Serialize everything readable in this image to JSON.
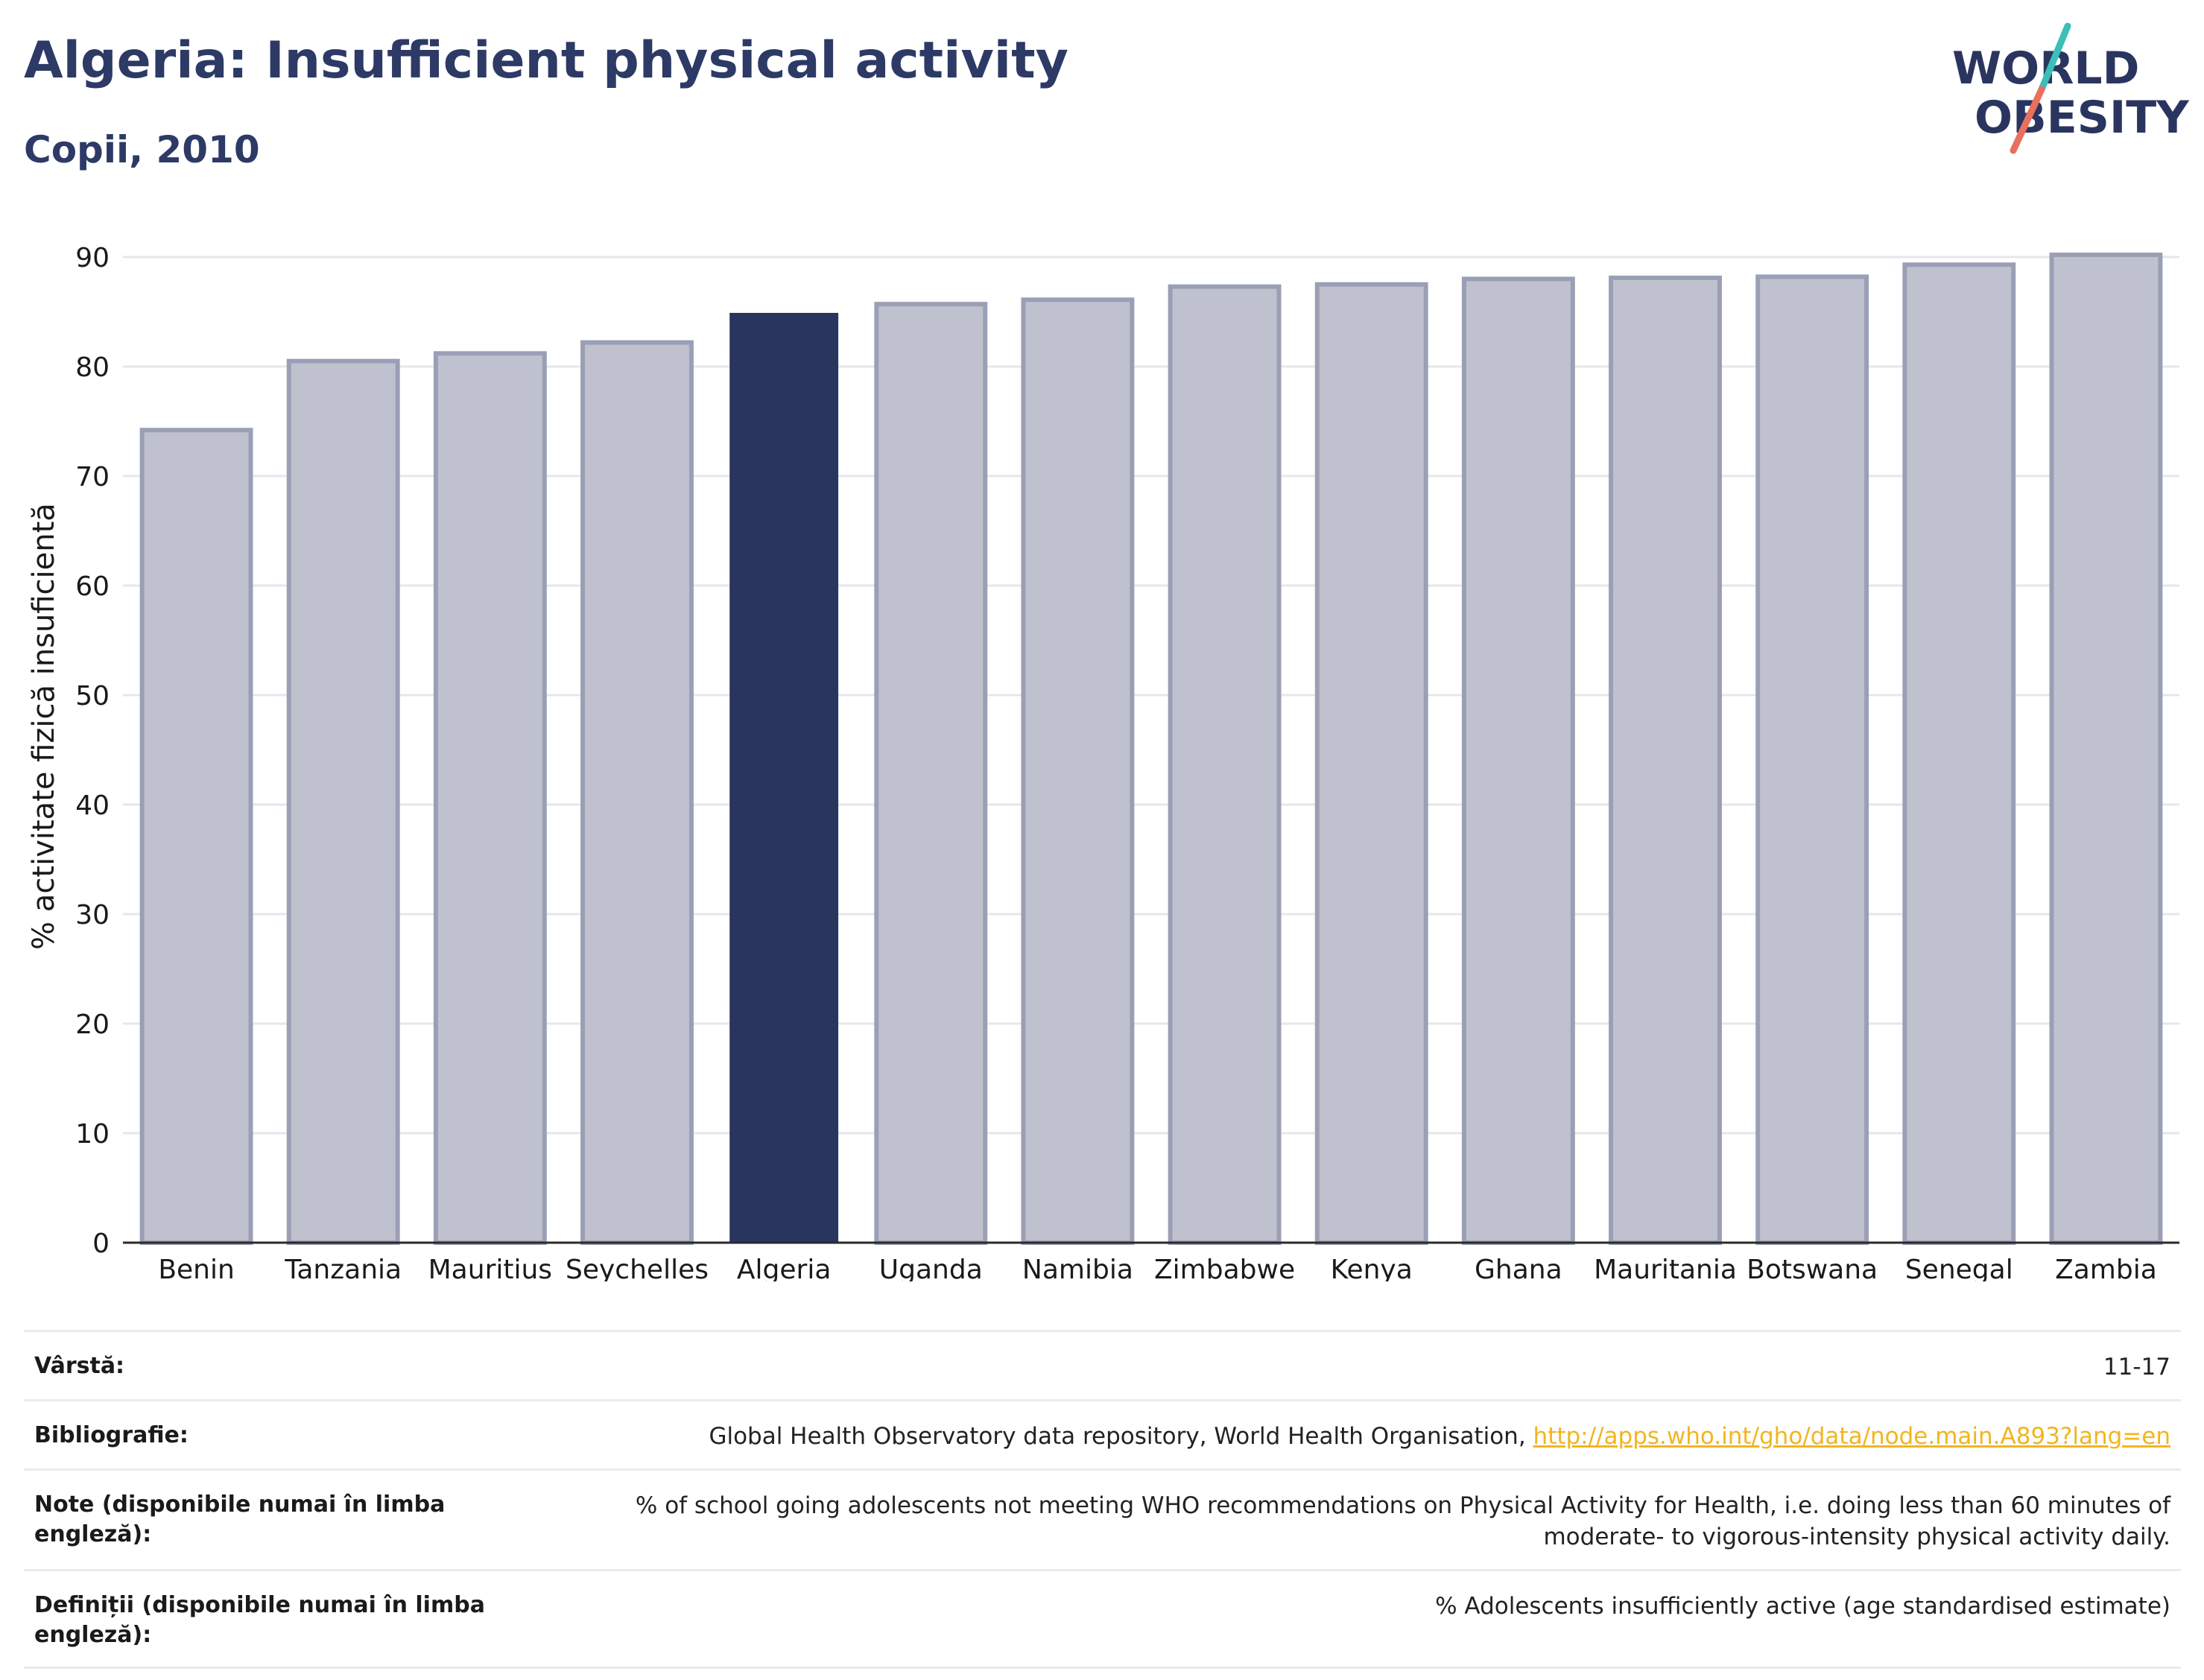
{
  "header": {
    "title": "Algeria: Insufficient physical activity",
    "subtitle": "Copii, 2010"
  },
  "logo": {
    "line1": "WORLD",
    "line2": "OBESITY",
    "accent_teal": "#3bbfb8",
    "accent_red": "#e8705c"
  },
  "chart_data": {
    "type": "bar",
    "title": "Algeria: Insufficient physical activity",
    "subtitle": "Copii, 2010",
    "categories": [
      "Benin",
      "Tanzania",
      "Mauritius",
      "Seychelles",
      "Algeria",
      "Uganda",
      "Namibia",
      "Zimbabwe",
      "Kenya",
      "Ghana",
      "Mauritania",
      "Botswana",
      "Senegal",
      "Zambia"
    ],
    "values": [
      74.2,
      80.5,
      81.2,
      82.2,
      84.9,
      85.7,
      86.1,
      87.3,
      87.5,
      88.0,
      88.1,
      88.2,
      89.3,
      90.2
    ],
    "highlight": "Algeria",
    "ylabel": "% activitate fizică insuficientă",
    "xlabel": "",
    "ylim": [
      0,
      90
    ],
    "yticks": [
      0,
      10,
      20,
      30,
      40,
      50,
      60,
      70,
      80,
      90
    ],
    "grid": true,
    "colors": {
      "highlight": "#2a355f",
      "other_fill": "#bfc2ce",
      "other_stroke": "#9a9fb5"
    }
  },
  "info": {
    "rows": [
      {
        "label": "Vârstă:",
        "value": "11-17",
        "link": ""
      },
      {
        "label": "Bibliografie:",
        "value": "Global Health Observatory data repository, World Health Organisation, ",
        "link": "http://apps.who.int/gho/data/node.main.A893?lang=en"
      },
      {
        "label": "Note (disponibile numai în limba engleză):",
        "value": "% of school going adolescents not meeting WHO recommendations on Physical Activity for Health, i.e. doing less than 60 minutes of moderate- to vigorous-intensity physical activity daily.",
        "link": ""
      },
      {
        "label": "Definiții (disponibile numai în limba engleză):",
        "value": "% Adolescents insufficiently active (age standardised estimate)",
        "link": ""
      }
    ]
  }
}
